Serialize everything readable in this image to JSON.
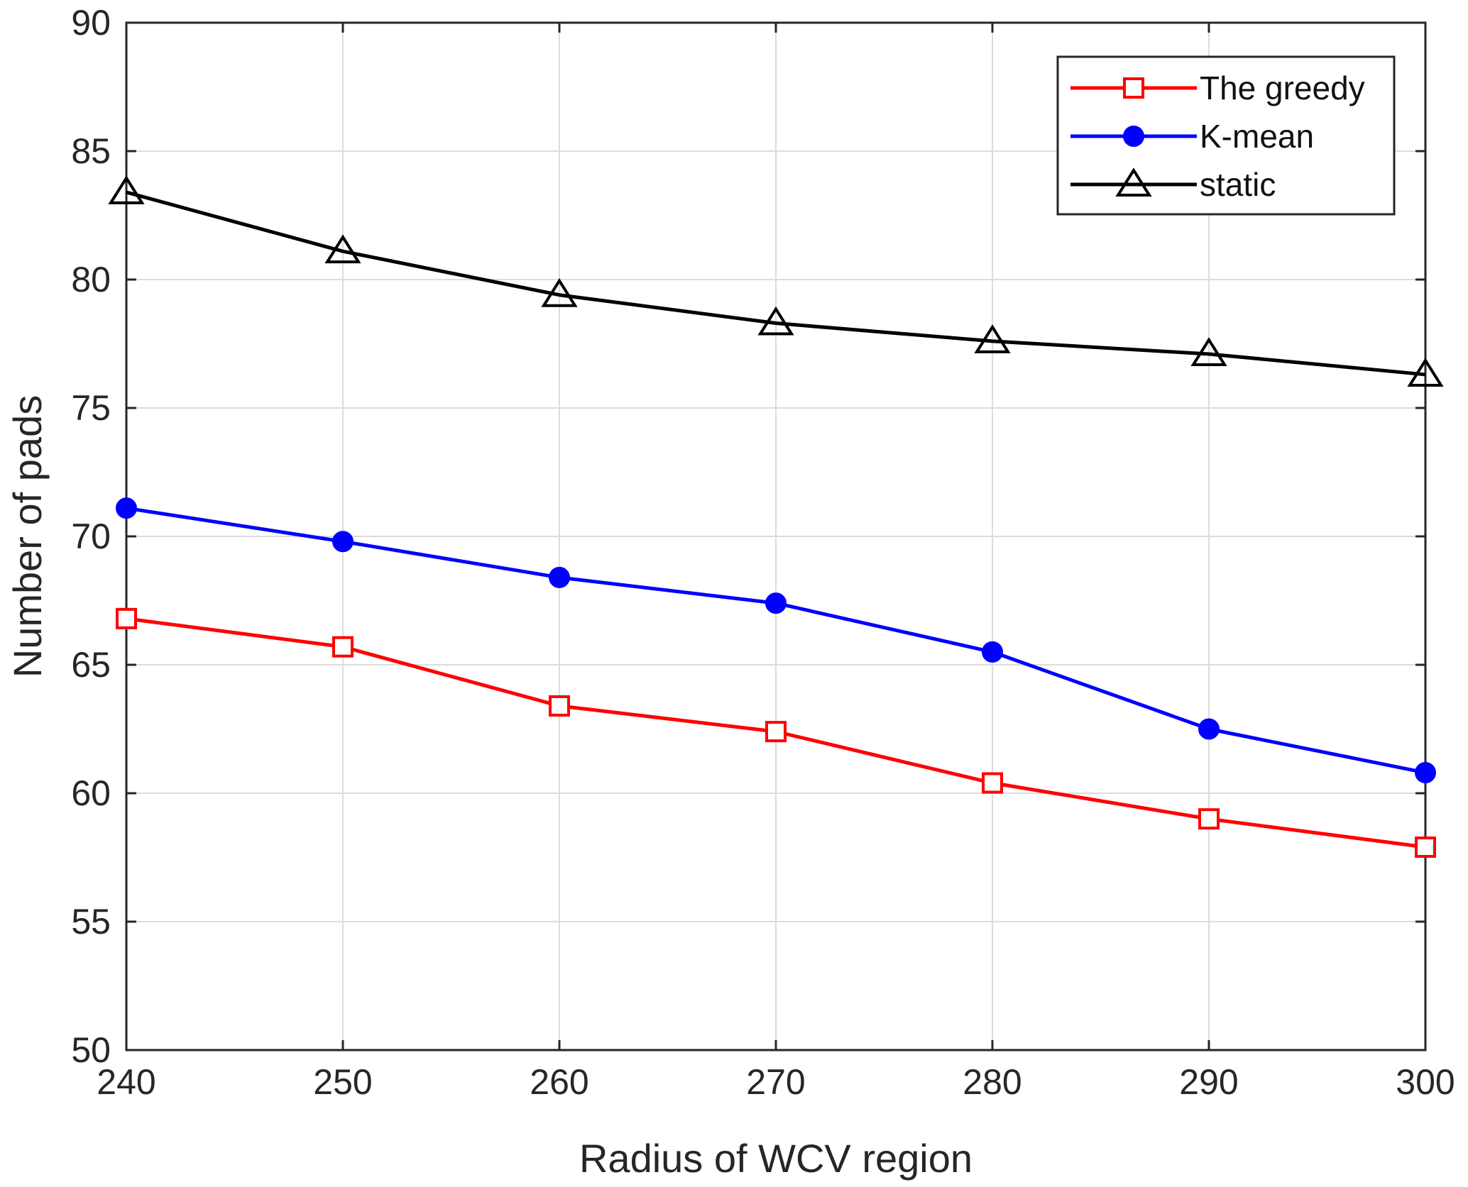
{
  "chart_data": {
    "type": "line",
    "title": "",
    "xlabel": "Radius of WCV region",
    "ylabel": "Number of pads",
    "x": [
      240,
      250,
      260,
      270,
      280,
      290,
      300
    ],
    "xticks": [
      "240",
      "250",
      "260",
      "270",
      "280",
      "290",
      "300"
    ],
    "yticks": [
      "50",
      "55",
      "60",
      "65",
      "70",
      "75",
      "80",
      "85",
      "90"
    ],
    "xlim": [
      240,
      300
    ],
    "ylim": [
      50,
      90
    ],
    "grid": true,
    "legend_position": "top-right",
    "series": [
      {
        "name": "The greedy",
        "color": "#ff0000",
        "marker": "square-open",
        "values": [
          66.8,
          65.7,
          63.4,
          62.4,
          60.4,
          59.0,
          57.9
        ]
      },
      {
        "name": "K-mean",
        "color": "#0000ff",
        "marker": "circle-filled",
        "values": [
          71.1,
          69.8,
          68.4,
          67.4,
          65.5,
          62.5,
          60.8
        ]
      },
      {
        "name": "static",
        "color": "#000000",
        "marker": "triangle-open",
        "values": [
          83.4,
          81.1,
          79.4,
          78.3,
          77.6,
          77.1,
          76.3
        ]
      }
    ]
  }
}
